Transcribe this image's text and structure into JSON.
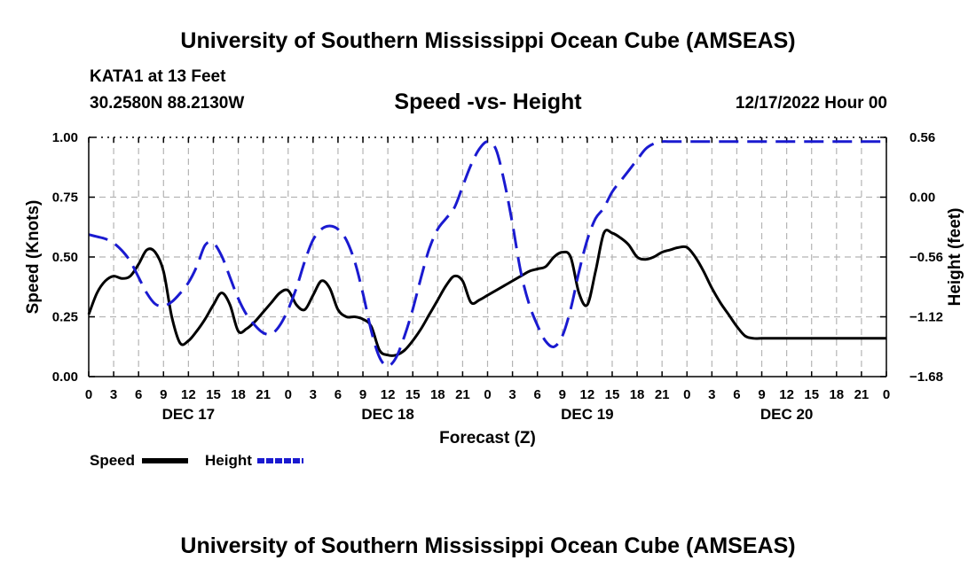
{
  "header": {
    "title_top": "University of Southern Mississippi Ocean Cube (AMSEAS)",
    "station": "KATA1 at 13 Feet",
    "coords": "30.2580N  88.2130W",
    "chart_title": "Speed -vs- Height",
    "datetime": "12/17/2022 Hour 00",
    "title_bottom": "University of Southern Mississippi Ocean Cube (AMSEAS)"
  },
  "legend": {
    "speed_label": "Speed",
    "height_label": "Height"
  },
  "colors": {
    "speed": "#000000",
    "height": "#1a1ad0",
    "grid": "#b4b4b4"
  },
  "chart_data": {
    "type": "line",
    "title": "Speed -vs- Height",
    "xlabel": "Forecast (Z)",
    "ylabel": "Speed (Knots)",
    "y2label": "Height (feet)",
    "x_range": [
      0,
      96
    ],
    "ylim": [
      0,
      1
    ],
    "y2lim": [
      -1.68,
      0.56
    ],
    "y_ticks": [
      0,
      0.25,
      0.5,
      0.75,
      1
    ],
    "y_tick_labels": [
      "0.00",
      "0.25",
      "0.50",
      "0.75",
      "1.00"
    ],
    "y2_ticks": [
      -1.68,
      -1.12,
      -0.56,
      0,
      0.56
    ],
    "y2_tick_labels": [
      "−1.68",
      "−1.12",
      "−0.56",
      "0.00",
      "0.56"
    ],
    "x_tick_labels": [
      "0",
      "3",
      "6",
      "9",
      "12",
      "15",
      "18",
      "21",
      "0",
      "3",
      "6",
      "9",
      "12",
      "15",
      "18",
      "21",
      "0",
      "3",
      "6",
      "9",
      "12",
      "15",
      "18",
      "21",
      "0",
      "3",
      "6",
      "9",
      "12",
      "15",
      "18",
      "21",
      "0"
    ],
    "day_labels": [
      {
        "x": 12,
        "label": "DEC 17"
      },
      {
        "x": 36,
        "label": "DEC 18"
      },
      {
        "x": 60,
        "label": "DEC 19"
      },
      {
        "x": 84,
        "label": "DEC 20"
      }
    ],
    "grid": true,
    "series": [
      {
        "name": "Speed",
        "axis": "left",
        "style": "solid",
        "x": [
          0,
          1,
          2,
          3,
          4,
          5,
          6,
          7,
          8,
          9,
          10,
          11,
          12,
          13,
          14,
          15,
          16,
          17,
          18,
          19,
          20,
          21,
          22,
          23,
          24,
          25,
          26,
          27,
          28,
          29,
          30,
          31,
          32,
          33,
          34,
          35,
          36,
          37,
          38,
          39,
          40,
          41,
          42,
          43,
          44,
          45,
          46,
          47,
          48,
          49,
          50,
          51,
          52,
          53,
          54,
          55,
          56,
          57,
          58,
          59,
          60,
          61,
          62,
          63,
          64,
          65,
          66,
          67,
          68,
          69,
          70,
          71,
          72,
          73,
          74,
          75,
          76,
          77,
          78,
          79,
          80,
          81,
          82,
          83,
          84,
          85,
          86,
          87,
          88,
          89,
          90,
          91,
          92,
          93,
          94,
          95,
          96
        ],
        "values": [
          0.26,
          0.35,
          0.4,
          0.42,
          0.41,
          0.42,
          0.47,
          0.53,
          0.52,
          0.44,
          0.25,
          0.14,
          0.15,
          0.19,
          0.24,
          0.3,
          0.35,
          0.3,
          0.19,
          0.2,
          0.23,
          0.27,
          0.31,
          0.35,
          0.36,
          0.3,
          0.28,
          0.34,
          0.4,
          0.37,
          0.28,
          0.25,
          0.25,
          0.24,
          0.21,
          0.11,
          0.09,
          0.09,
          0.11,
          0.15,
          0.2,
          0.26,
          0.32,
          0.38,
          0.42,
          0.4,
          0.31,
          0.32,
          0.34,
          0.36,
          0.38,
          0.4,
          0.42,
          0.44,
          0.45,
          0.46,
          0.5,
          0.52,
          0.5,
          0.35,
          0.3,
          0.44,
          0.6,
          0.6,
          0.58,
          0.55,
          0.5,
          0.49,
          0.5,
          0.52,
          0.53,
          0.54,
          0.54,
          0.5,
          0.44,
          0.37,
          0.31,
          0.26,
          0.21,
          0.17,
          0.16,
          0.16,
          0.16,
          0.16,
          0.16,
          0.16,
          0.16,
          0.16,
          0.16,
          0.16,
          0.16,
          0.16,
          0.16,
          0.16,
          0.16,
          0.16,
          0.16
        ]
      },
      {
        "name": "Height",
        "axis": "right",
        "style": "dashed",
        "x": [
          0,
          1,
          2,
          3,
          4,
          5,
          6,
          7,
          8,
          9,
          10,
          11,
          12,
          13,
          14,
          15,
          16,
          17,
          18,
          19,
          20,
          21,
          22,
          23,
          24,
          25,
          26,
          27,
          28,
          29,
          30,
          31,
          32,
          33,
          34,
          35,
          36,
          37,
          38,
          39,
          40,
          41,
          42,
          43,
          44,
          45,
          46,
          47,
          48,
          49,
          50,
          51,
          52,
          53,
          54,
          55,
          56,
          57,
          58,
          59,
          60,
          61,
          62,
          63,
          64,
          65,
          66,
          67,
          68,
          69,
          70,
          71,
          72,
          73,
          74,
          75,
          76,
          77,
          78,
          79,
          80,
          81,
          82,
          83,
          84,
          85,
          86,
          87,
          88,
          89,
          90,
          91,
          92,
          93,
          94,
          95,
          96
        ],
        "values": [
          -0.35,
          -0.37,
          -0.39,
          -0.43,
          -0.5,
          -0.6,
          -0.75,
          -0.9,
          -1.0,
          -1.02,
          -0.98,
          -0.9,
          -0.8,
          -0.65,
          -0.45,
          -0.43,
          -0.55,
          -0.75,
          -0.95,
          -1.1,
          -1.2,
          -1.27,
          -1.28,
          -1.2,
          -1.05,
          -0.85,
          -0.6,
          -0.4,
          -0.3,
          -0.27,
          -0.3,
          -0.4,
          -0.6,
          -0.9,
          -1.25,
          -1.5,
          -1.58,
          -1.5,
          -1.3,
          -1.05,
          -0.75,
          -0.48,
          -0.3,
          -0.2,
          -0.1,
          0.1,
          0.3,
          0.45,
          0.52,
          0.45,
          0.15,
          -0.25,
          -0.7,
          -1.0,
          -1.2,
          -1.35,
          -1.4,
          -1.3,
          -1.05,
          -0.7,
          -0.4,
          -0.2,
          -0.1,
          0.05,
          0.15,
          0.25,
          0.35,
          0.45,
          0.5,
          0.52,
          0.52,
          0.52,
          0.52,
          0.52,
          0.52,
          0.52,
          0.52,
          0.52,
          0.52,
          0.52,
          0.52,
          0.52,
          0.52,
          0.52,
          0.52,
          0.52,
          0.52,
          0.52,
          0.52,
          0.52,
          0.52,
          0.52,
          0.52,
          0.52,
          0.52,
          0.52,
          0.52
        ]
      }
    ]
  }
}
